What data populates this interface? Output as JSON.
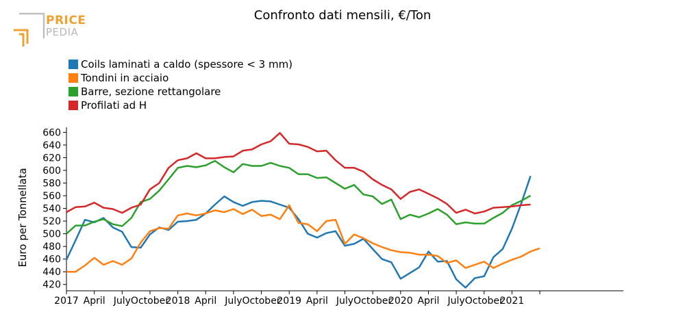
{
  "logo": {
    "word1": "PRICE",
    "word2": "PEDIA"
  },
  "chart_data": {
    "type": "line",
    "title": "Confronto dati mensili, €/Ton",
    "xlabel": "",
    "ylabel": "Euro per Tonnellata",
    "ylim": [
      410,
      668
    ],
    "yticks": [
      420,
      440,
      460,
      480,
      500,
      520,
      540,
      560,
      580,
      600,
      620,
      640,
      660
    ],
    "x_start": "2017-01",
    "x_end": "2021-12",
    "xticks": [
      {
        "month": "2017-01",
        "label": "2017"
      },
      {
        "month": "2017-04",
        "label": "April"
      },
      {
        "month": "2017-07",
        "label": "July"
      },
      {
        "month": "2017-10",
        "label": "October"
      },
      {
        "month": "2018-01",
        "label": "2018"
      },
      {
        "month": "2018-04",
        "label": "April"
      },
      {
        "month": "2018-07",
        "label": "July"
      },
      {
        "month": "2018-10",
        "label": "October"
      },
      {
        "month": "2019-01",
        "label": "2019"
      },
      {
        "month": "2019-04",
        "label": "April"
      },
      {
        "month": "2019-07",
        "label": "July"
      },
      {
        "month": "2019-10",
        "label": "October"
      },
      {
        "month": "2020-01",
        "label": "2020"
      },
      {
        "month": "2020-04",
        "label": "April"
      },
      {
        "month": "2020-07",
        "label": "July"
      },
      {
        "month": "2020-10",
        "label": "October"
      },
      {
        "month": "2021-01",
        "label": "2021"
      },
      {
        "month": "2021-04",
        "label": ""
      }
    ],
    "grid": false,
    "legend_position": "top-left",
    "series": [
      {
        "name": "Coils laminati a caldo (spessore < 3 mm)",
        "color": "#1f77b4",
        "values": [
          459,
          490,
          522,
          518,
          525,
          510,
          503,
          479,
          478,
          499,
          510,
          506,
          519,
          520,
          522,
          532,
          546,
          559,
          550,
          544,
          550,
          552,
          551,
          546,
          541,
          523,
          500,
          494,
          501,
          504,
          481,
          484,
          492,
          476,
          460,
          455,
          429,
          438,
          447,
          472,
          456,
          457,
          428,
          415,
          430,
          433,
          463,
          476,
          508,
          548,
          591
        ]
      },
      {
        "name": "Tondini in acciaio",
        "color": "#ff7f0e",
        "values": [
          440,
          440,
          450,
          462,
          451,
          457,
          451,
          461,
          486,
          504,
          509,
          508,
          529,
          532,
          529,
          532,
          537,
          534,
          539,
          531,
          538,
          528,
          530,
          523,
          545,
          517,
          515,
          504,
          520,
          522,
          484,
          499,
          493,
          485,
          479,
          474,
          471,
          470,
          467,
          467,
          465,
          454,
          458,
          446,
          451,
          456,
          446,
          453,
          459,
          464,
          472,
          477
        ]
      },
      {
        "name": "Barre, sezione rettangolare",
        "color": "#2ca02c",
        "values": [
          500,
          513,
          513,
          519,
          523,
          515,
          512,
          525,
          550,
          555,
          568,
          586,
          604,
          607,
          605,
          608,
          615,
          605,
          597,
          610,
          607,
          607,
          612,
          607,
          604,
          594,
          594,
          588,
          589,
          580,
          571,
          577,
          562,
          559,
          547,
          554,
          523,
          530,
          526,
          532,
          539,
          530,
          515,
          518,
          516,
          516,
          525,
          533,
          545,
          552,
          560
        ]
      },
      {
        "name": "Profilati ad H",
        "color": "#d62728",
        "values": [
          534,
          542,
          543,
          549,
          541,
          539,
          533,
          541,
          546,
          570,
          580,
          604,
          616,
          619,
          627,
          619,
          619,
          621,
          622,
          631,
          633,
          641,
          646,
          659,
          642,
          641,
          637,
          630,
          631,
          616,
          604,
          604,
          598,
          586,
          577,
          570,
          555,
          566,
          570,
          563,
          556,
          547,
          533,
          538,
          532,
          535,
          541,
          542,
          543,
          545,
          546
        ]
      }
    ]
  }
}
